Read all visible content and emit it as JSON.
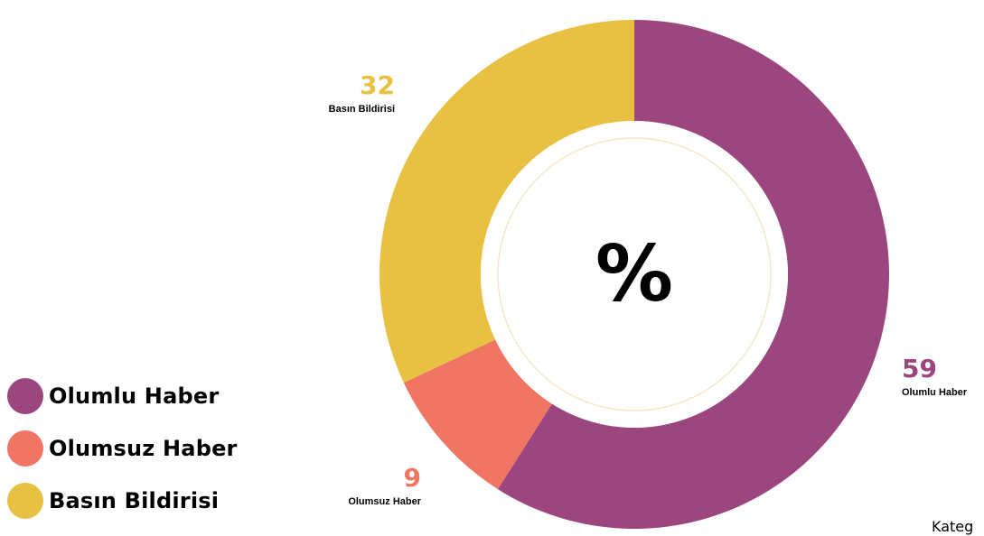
{
  "chart_data": {
    "type": "pie",
    "subtype": "donut",
    "center_label": "%",
    "categories": [
      "Olumlu Haber",
      "Olumsuz Haber",
      "Basın Bildirisi"
    ],
    "values": [
      59,
      9,
      32
    ],
    "colors": [
      "#9c467f",
      "#f07563",
      "#e8c143"
    ],
    "legend_position": "bottom-left"
  },
  "legend": {
    "items": [
      {
        "label": "Olumlu Haber",
        "color": "#9c467f"
      },
      {
        "label": "Olumsuz Haber",
        "color": "#f07563"
      },
      {
        "label": "Basın Bildirisi",
        "color": "#e8c143"
      }
    ]
  },
  "footer": {
    "text": "Kateg"
  },
  "colors": {
    "background": "#ffffff",
    "inner_ring": "#f5e8c8"
  }
}
